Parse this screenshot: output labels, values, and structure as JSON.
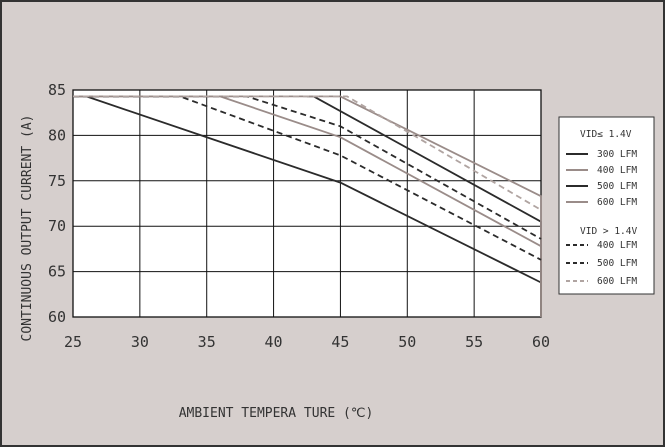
{
  "colors": {
    "background": "#d6cfcd",
    "plot_background": "#ffffff",
    "grid": "#111111",
    "text": "#333333",
    "dark": "#2b2b2b",
    "gray": "#9a8c89",
    "gray_dashed": "#b0a4a1"
  },
  "chart_data": {
    "type": "line",
    "xlabel": "AMBIENT TEMPERA TURE (℃)",
    "ylabel": "CONTINUOUS OUTPUT CURRENT (A)",
    "xlim": [
      25,
      60
    ],
    "ylim": [
      60,
      85
    ],
    "x_ticks": [
      "25",
      "30",
      "35",
      "40",
      "45",
      "50",
      "55",
      "60"
    ],
    "y_ticks": [
      "85",
      "80",
      "75",
      "70",
      "65",
      "60"
    ],
    "x_tick_values": [
      25,
      30,
      35,
      40,
      45,
      50,
      55,
      60
    ],
    "y_tick_values": [
      85,
      80,
      75,
      70,
      65,
      60
    ],
    "grid": true,
    "legend_position": "right",
    "legend": {
      "group1_title": "VID≤ 1.4V",
      "group2_title": "VID > 1.4V"
    },
    "series": [
      {
        "name": "300 LFM",
        "group": 1,
        "color": "dark",
        "dash": false,
        "x": [
          25,
          26,
          45,
          60,
          60
        ],
        "y": [
          84.3,
          84.3,
          74.8,
          63.8,
          60
        ]
      },
      {
        "name": "400 LFM",
        "group": 1,
        "color": "gray",
        "dash": false,
        "x": [
          25,
          36,
          45,
          60,
          60
        ],
        "y": [
          84.3,
          84.3,
          79.8,
          67.8,
          60
        ]
      },
      {
        "name": "500 LFM",
        "group": 1,
        "color": "dark",
        "dash": false,
        "x": [
          42.5,
          43,
          60,
          60
        ],
        "y": [
          84.3,
          84.3,
          70.5,
          60
        ]
      },
      {
        "name": "600 LFM",
        "group": 1,
        "color": "gray",
        "dash": false,
        "x": [
          25,
          45,
          60,
          60
        ],
        "y": [
          84.3,
          84.3,
          73.3,
          60
        ]
      },
      {
        "name": "400 LFM",
        "group": 2,
        "color": "dark",
        "dash": true,
        "x": [
          25,
          33,
          45,
          60
        ],
        "y": [
          84.3,
          84.3,
          77.8,
          66.3
        ]
      },
      {
        "name": "500 LFM",
        "group": 2,
        "color": "dark",
        "dash": true,
        "x": [
          25,
          38,
          45,
          60
        ],
        "y": [
          84.3,
          84.3,
          81,
          68.6
        ]
      },
      {
        "name": "600 LFM",
        "group": 2,
        "color": "gray_dashed",
        "dash": true,
        "x": [
          25,
          45.5,
          60
        ],
        "y": [
          84.3,
          84.3,
          71.8
        ]
      }
    ]
  }
}
